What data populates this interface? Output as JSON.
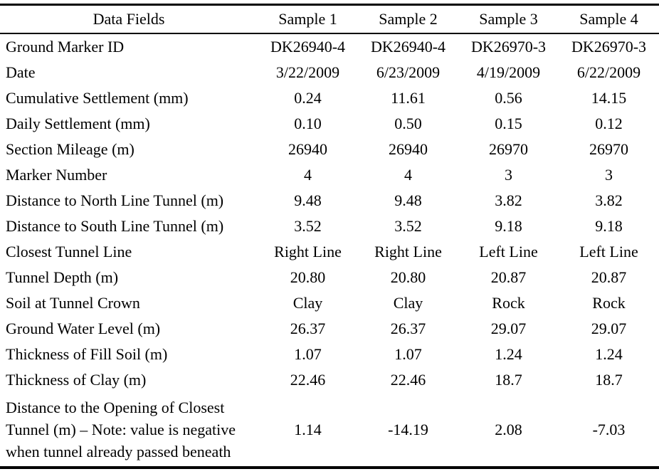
{
  "table": {
    "header": [
      "Data Fields",
      "Sample 1",
      "Sample 2",
      "Sample 3",
      "Sample 4"
    ],
    "rows": [
      {
        "field": "Ground Marker ID",
        "values": [
          "DK26940-4",
          "DK26940-4",
          "DK26970-3",
          "DK26970-3"
        ]
      },
      {
        "field": "Date",
        "values": [
          "3/22/2009",
          "6/23/2009",
          "4/19/2009",
          "6/22/2009"
        ]
      },
      {
        "field": "Cumulative Settlement (mm)",
        "values": [
          "0.24",
          "11.61",
          "0.56",
          "14.15"
        ]
      },
      {
        "field": "Daily Settlement (mm)",
        "values": [
          "0.10",
          "0.50",
          "0.15",
          "0.12"
        ]
      },
      {
        "field": "Section Mileage (m)",
        "values": [
          "26940",
          "26940",
          "26970",
          "26970"
        ]
      },
      {
        "field": "Marker Number",
        "values": [
          "4",
          "4",
          "3",
          "3"
        ]
      },
      {
        "field": "Distance to North Line Tunnel (m)",
        "values": [
          "9.48",
          "9.48",
          "3.82",
          "3.82"
        ]
      },
      {
        "field": "Distance to South Line Tunnel (m)",
        "values": [
          "3.52",
          "3.52",
          "9.18",
          "9.18"
        ]
      },
      {
        "field": "Closest Tunnel Line",
        "values": [
          "Right Line",
          "Right Line",
          "Left Line",
          "Left Line"
        ]
      },
      {
        "field": "Tunnel Depth (m)",
        "values": [
          "20.80",
          "20.80",
          "20.87",
          "20.87"
        ]
      },
      {
        "field": "Soil at Tunnel Crown",
        "values": [
          "Clay",
          "Clay",
          "Rock",
          "Rock"
        ]
      },
      {
        "field": "Ground Water Level (m)",
        "values": [
          "26.37",
          "26.37",
          "29.07",
          "29.07"
        ]
      },
      {
        "field": "Thickness of Fill Soil (m)",
        "values": [
          "1.07",
          "1.07",
          "1.24",
          "1.24"
        ]
      },
      {
        "field": "Thickness of Clay (m)",
        "values": [
          "22.46",
          "22.46",
          "18.7",
          "18.7"
        ]
      },
      {
        "field": "Distance to the Opening of Closest Tunnel (m) – Note: value is negative when tunnel already passed beneath",
        "values": [
          "1.14",
          "-14.19",
          "2.08",
          "-7.03"
        ],
        "multiline": true
      }
    ],
    "colors": {
      "text": "#000000",
      "background": "#ffffff",
      "rule": "#000000"
    }
  }
}
